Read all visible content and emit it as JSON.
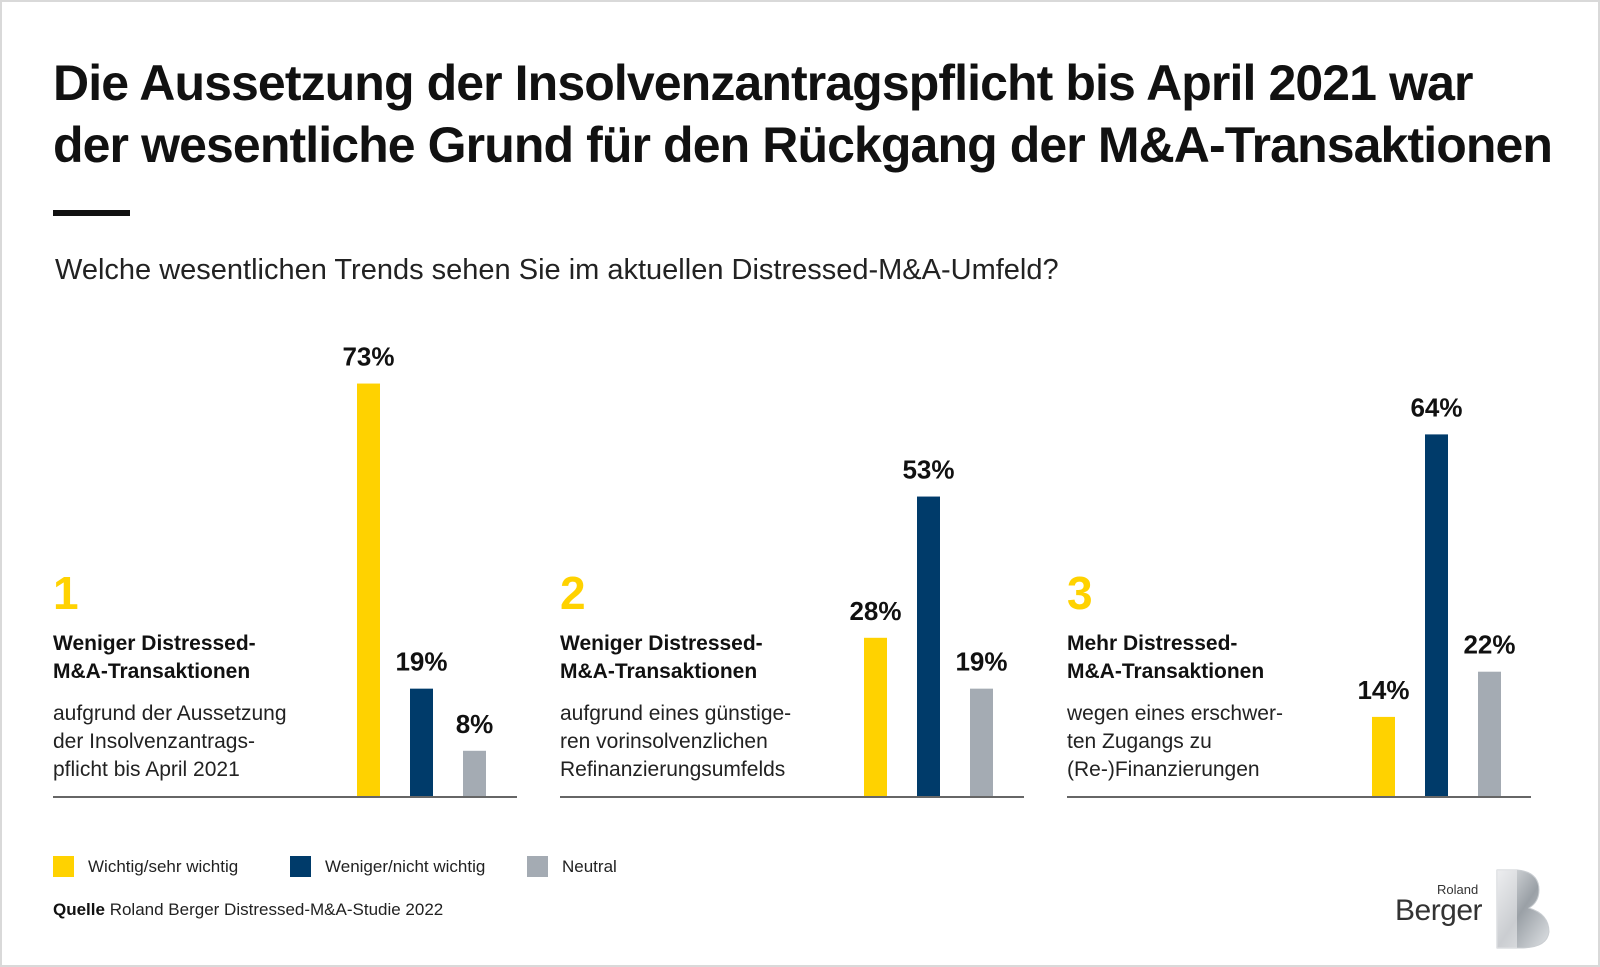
{
  "title": {
    "line1": "Die Aussetzung der Insolvenzantragspflicht bis April 2021 war",
    "line2": "der wesentliche Grund für den Rückgang der M&A-Transaktionen"
  },
  "subtitle": "Welche wesentlichen Trends sehen Sie im aktuellen Distressed-M&A-Umfeld?",
  "colors": {
    "important": "#ffd200",
    "less_important": "#003b6a",
    "neutral": "#a4abb3",
    "accent_number": "#ffd200"
  },
  "groups": [
    {
      "number": "1",
      "heading": [
        "Weniger Distressed-",
        "M&A-Transaktionen"
      ],
      "description": [
        "aufgrund der Aussetzung",
        "der Insolvenzantrags-",
        "pflicht bis April 2021"
      ]
    },
    {
      "number": "2",
      "heading": [
        "Weniger Distressed-",
        "M&A-Transaktionen"
      ],
      "description": [
        "aufgrund eines günstige-",
        "ren vorinsolvenzlichen",
        "Refinanzierungsumfelds"
      ]
    },
    {
      "number": "3",
      "heading": [
        "Mehr Distressed-",
        "M&A-Transaktionen"
      ],
      "description": [
        "wegen eines erschwer-",
        "ten Zugangs zu",
        "(Re-)Finanzierungen"
      ]
    }
  ],
  "chart_data": {
    "type": "bar",
    "categories": [
      "1",
      "2",
      "3"
    ],
    "series": [
      {
        "name": "Wichtig/sehr wichtig",
        "values": [
          73,
          28,
          14
        ],
        "labels": [
          "73%",
          "28%",
          "14%"
        ]
      },
      {
        "name": "Weniger/nicht wichtig",
        "values": [
          19,
          53,
          64
        ],
        "labels": [
          "19%",
          "53%",
          "64%"
        ]
      },
      {
        "name": "Neutral",
        "values": [
          8,
          19,
          22
        ],
        "labels": [
          "8%",
          "19%",
          "22%"
        ]
      }
    ],
    "unit": "%",
    "ylim": [
      0,
      73
    ],
    "grid": false,
    "legend_position": "bottom-left"
  },
  "legend": [
    {
      "label": "Wichtig/sehr wichtig",
      "color": "#ffd200"
    },
    {
      "label": "Weniger/nicht wichtig",
      "color": "#003b6a"
    },
    {
      "label": "Neutral",
      "color": "#a4abb3"
    }
  ],
  "source": {
    "label": "Quelle",
    "text": "Roland Berger Distressed-M&A-Studie 2022"
  },
  "logo": {
    "line1": "Roland",
    "line2": "Berger"
  }
}
